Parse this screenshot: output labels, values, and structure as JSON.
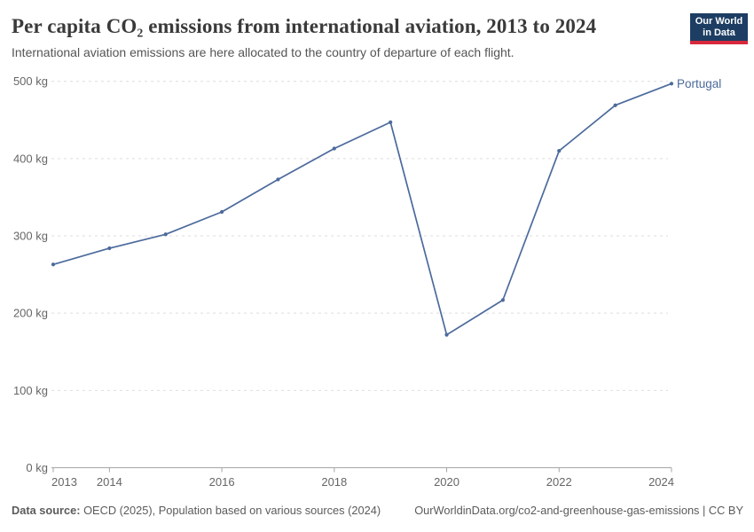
{
  "header": {
    "title": "Per capita CO₂ emissions from international aviation, 2013 to 2024",
    "subtitle": "International aviation emissions are here allocated to the country of departure of each flight.",
    "logo": {
      "line1": "Our World",
      "line2": "in Data"
    }
  },
  "chart_data": {
    "type": "line",
    "title": "Per capita CO₂ emissions from international aviation, 2013 to 2024",
    "x": [
      2013,
      2014,
      2015,
      2016,
      2017,
      2018,
      2019,
      2020,
      2021,
      2022,
      2023,
      2024
    ],
    "series": [
      {
        "name": "Portugal",
        "color": "#4c6a9c",
        "values": [
          263,
          284,
          302,
          331,
          373,
          413,
          447,
          172,
          217,
          410,
          469,
          497
        ]
      }
    ],
    "unit": "kg",
    "ylim": [
      0,
      500
    ],
    "xlim": [
      2013,
      2024
    ],
    "yticks": [
      0,
      100,
      200,
      300,
      400,
      500
    ],
    "ytick_labels": [
      "0 kg",
      "100 kg",
      "200 kg",
      "300 kg",
      "400 kg",
      "500 kg"
    ],
    "xticks": [
      2013,
      2014,
      2016,
      2018,
      2020,
      2022,
      2024
    ],
    "grid": "horizontal-dashed",
    "legend_position": "end-of-line-label",
    "end_label": "Portugal"
  },
  "colors": {
    "series_blue": "#4c6a9c",
    "grid": "#dedede",
    "axis": "#a5a5a5",
    "tick_label": "#666666",
    "logo_navy": "#1d3d63",
    "logo_red": "#d8283c"
  },
  "footer": {
    "source_label": "Data source:",
    "source_rest": " OECD (2025), Population based on various sources (2024)",
    "right_text": "OurWorldinData.org/co2-and-greenhouse-gas-emissions | CC BY"
  }
}
